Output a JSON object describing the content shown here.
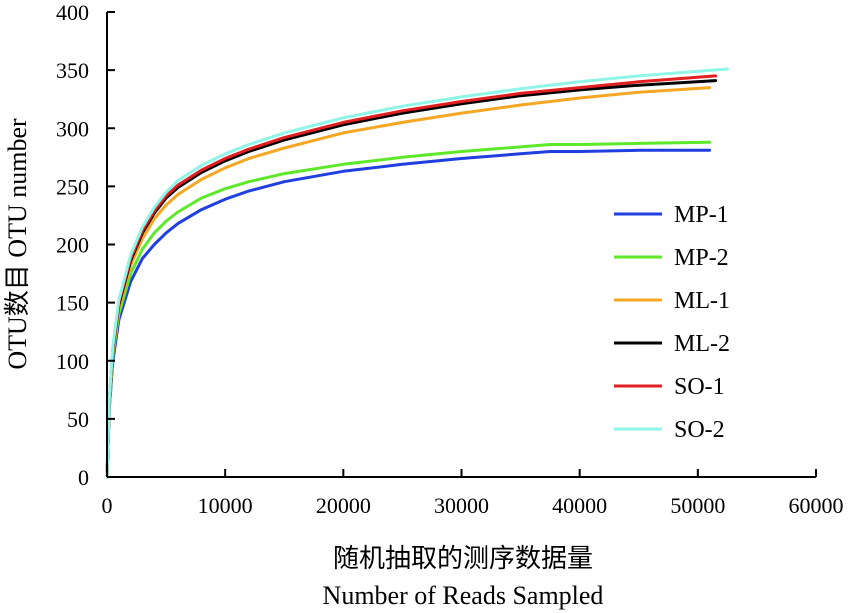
{
  "chart_data": {
    "type": "line",
    "xlabel_zh": "随机抽取的测序数据量",
    "xlabel": "Number of Reads Sampled",
    "ylabel": "OTU数目 OTU number",
    "xlim": [
      0,
      60000
    ],
    "ylim": [
      0,
      400
    ],
    "xticks": [
      0,
      10000,
      20000,
      30000,
      40000,
      50000,
      60000
    ],
    "yticks": [
      0,
      50,
      100,
      150,
      200,
      250,
      300,
      350,
      400
    ],
    "legend_position": "right",
    "grid": false,
    "series": [
      {
        "name": "MP-1",
        "color": "#1f3fe0",
        "x": [
          0,
          200,
          500,
          1000,
          2000,
          3000,
          4000,
          5000,
          6000,
          8000,
          10000,
          12000,
          15000,
          20000,
          25000,
          30000,
          35000,
          37500,
          40000,
          45000,
          51000
        ],
        "y": [
          0,
          60,
          100,
          135,
          168,
          188,
          200,
          210,
          218,
          230,
          239,
          246,
          254,
          263,
          269,
          274,
          278,
          280,
          280,
          281,
          281
        ]
      },
      {
        "name": "MP-2",
        "color": "#5ee82a",
        "x": [
          0,
          200,
          500,
          1000,
          2000,
          3000,
          4000,
          5000,
          6000,
          8000,
          10000,
          12000,
          15000,
          20000,
          25000,
          30000,
          35000,
          37500,
          40000,
          45000,
          51000
        ],
        "y": [
          0,
          62,
          105,
          140,
          175,
          196,
          210,
          220,
          228,
          240,
          248,
          254,
          261,
          269,
          275,
          280,
          284,
          286,
          286,
          287,
          288
        ]
      },
      {
        "name": "ML-1",
        "color": "#f5a623",
        "x": [
          0,
          200,
          500,
          1000,
          2000,
          3000,
          4000,
          5000,
          6000,
          8000,
          10000,
          12000,
          15000,
          20000,
          25000,
          30000,
          35000,
          40000,
          45000,
          51000
        ],
        "y": [
          0,
          65,
          108,
          145,
          182,
          205,
          222,
          234,
          243,
          256,
          266,
          274,
          283,
          296,
          305,
          313,
          320,
          326,
          331,
          335
        ]
      },
      {
        "name": "ML-2",
        "color": "#000000",
        "x": [
          0,
          200,
          500,
          1000,
          2000,
          3000,
          4000,
          5000,
          6000,
          8000,
          10000,
          12000,
          15000,
          20000,
          25000,
          30000,
          35000,
          40000,
          45000,
          51500
        ],
        "y": [
          0,
          66,
          110,
          148,
          186,
          210,
          227,
          240,
          249,
          262,
          272,
          280,
          290,
          303,
          313,
          321,
          328,
          333,
          337,
          341
        ]
      },
      {
        "name": "SO-1",
        "color": "#e02020",
        "x": [
          0,
          200,
          500,
          1000,
          2000,
          3000,
          4000,
          5000,
          6000,
          8000,
          10000,
          12000,
          15000,
          20000,
          25000,
          30000,
          35000,
          40000,
          45000,
          51500
        ],
        "y": [
          0,
          67,
          111,
          150,
          188,
          212,
          229,
          242,
          251,
          264,
          274,
          282,
          292,
          305,
          315,
          323,
          330,
          335,
          340,
          345
        ]
      },
      {
        "name": "SO-2",
        "color": "#8ff5e6",
        "x": [
          0,
          200,
          500,
          1000,
          2000,
          3000,
          4000,
          5000,
          6000,
          8000,
          10000,
          12000,
          15000,
          20000,
          25000,
          30000,
          35000,
          40000,
          45000,
          52500
        ],
        "y": [
          0,
          68,
          113,
          152,
          191,
          215,
          232,
          245,
          255,
          268,
          278,
          286,
          296,
          309,
          319,
          327,
          334,
          340,
          345,
          351
        ]
      }
    ]
  }
}
